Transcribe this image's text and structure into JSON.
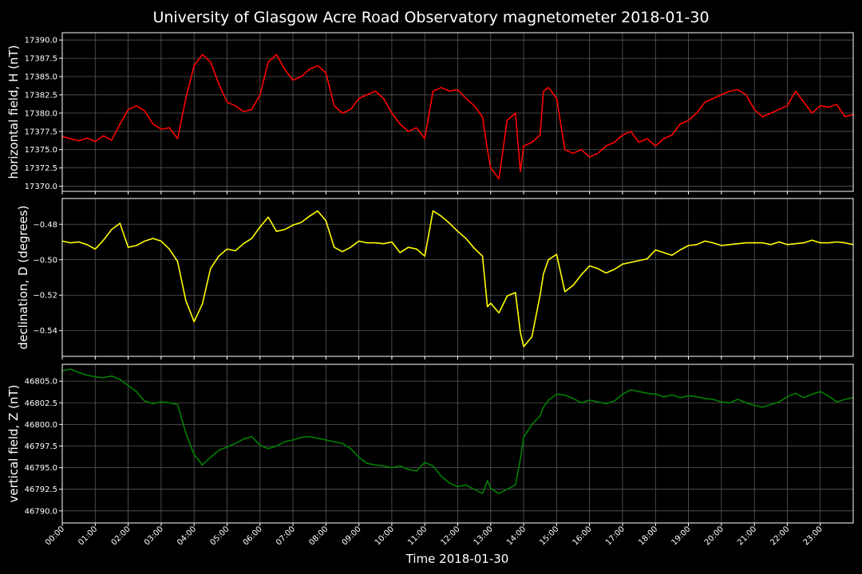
{
  "figure": {
    "title": "University of Glasgow Acre Road Observatory magnetometer 2018-01-30",
    "xlabel": "Time 2018-01-30",
    "background": "#000000"
  },
  "chart_data": [
    {
      "type": "line",
      "ylabel": "horizontal field, H (nT)",
      "color": "#ff0000",
      "xlim": [
        0,
        24
      ],
      "ylim": [
        17369.3,
        17391.0
      ],
      "yticks": [
        17370.0,
        17372.5,
        17375.0,
        17377.5,
        17380.0,
        17382.5,
        17385.0,
        17387.5,
        17390.0
      ],
      "ytick_labels": [
        "17370.0",
        "17372.5",
        "17375.0",
        "17377.5",
        "17380.0",
        "17382.5",
        "17385.0",
        "17387.5",
        "17390.0"
      ],
      "grid": true,
      "x": [
        0,
        0.25,
        0.5,
        0.75,
        1.0,
        1.25,
        1.5,
        1.75,
        2.0,
        2.25,
        2.5,
        2.75,
        3.0,
        3.25,
        3.5,
        3.75,
        4.0,
        4.25,
        4.5,
        4.75,
        5.0,
        5.25,
        5.5,
        5.75,
        6.0,
        6.25,
        6.5,
        6.75,
        7.0,
        7.25,
        7.5,
        7.75,
        8.0,
        8.25,
        8.5,
        8.75,
        9.0,
        9.25,
        9.5,
        9.75,
        10.0,
        10.25,
        10.5,
        10.75,
        11.0,
        11.25,
        11.5,
        11.75,
        12.0,
        12.25,
        12.5,
        12.75,
        12.9,
        13.0,
        13.25,
        13.5,
        13.75,
        13.9,
        14.0,
        14.25,
        14.5,
        14.6,
        14.75,
        15.0,
        15.25,
        15.5,
        15.75,
        16.0,
        16.25,
        16.5,
        16.75,
        17.0,
        17.25,
        17.5,
        17.75,
        18.0,
        18.25,
        18.5,
        18.75,
        19.0,
        19.25,
        19.5,
        19.75,
        20.0,
        20.25,
        20.5,
        20.75,
        21.0,
        21.25,
        21.5,
        21.75,
        22.0,
        22.25,
        22.5,
        22.75,
        23.0,
        23.25,
        23.5,
        23.75,
        24.0
      ],
      "values": [
        17376.8,
        17376.5,
        17376.2,
        17376.6,
        17376.1,
        17376.9,
        17376.3,
        17378.5,
        17380.5,
        17381.0,
        17380.3,
        17378.5,
        17377.8,
        17378.0,
        17376.5,
        17382.0,
        17386.5,
        17388.0,
        17387.0,
        17384.0,
        17381.5,
        17381.0,
        17380.2,
        17380.5,
        17382.5,
        17387.0,
        17388.0,
        17386.0,
        17384.5,
        17385.0,
        17386.0,
        17386.5,
        17385.5,
        17381.0,
        17380.0,
        17380.5,
        17382.0,
        17382.5,
        17383.0,
        17382.0,
        17380.0,
        17378.5,
        17377.5,
        17378.0,
        17376.5,
        17383.0,
        17383.5,
        17383.0,
        17383.2,
        17382.0,
        17381.0,
        17379.5,
        17375.0,
        17372.5,
        17371.0,
        17379.0,
        17380.0,
        17372.0,
        17375.5,
        17376.0,
        17377.0,
        17383.0,
        17383.5,
        17382.0,
        17375.0,
        17374.5,
        17375.0,
        17374.0,
        17374.5,
        17375.5,
        17376.0,
        17377.0,
        17377.5,
        17376.0,
        17376.5,
        17375.5,
        17376.5,
        17377.0,
        17378.5,
        17379.0,
        17380.0,
        17381.5,
        17382.0,
        17382.5,
        17383.0,
        17383.2,
        17382.5,
        17380.5,
        17379.5,
        17380.0,
        17380.5,
        17381.0,
        17383.0,
        17381.5,
        17380.0,
        17381.0,
        17380.8,
        17381.2,
        17379.5,
        17379.8
      ]
    },
    {
      "type": "line",
      "ylabel": "declination, D (degrees)",
      "color": "#ffff00",
      "xlim": [
        0,
        24
      ],
      "ylim": [
        -0.5545,
        -0.4655
      ],
      "yticks": [
        -0.54,
        -0.52,
        -0.5,
        -0.48
      ],
      "ytick_labels": [
        "−0.54",
        "−0.52",
        "−0.50",
        "−0.48"
      ],
      "grid": true,
      "x": [
        0,
        0.25,
        0.5,
        0.75,
        1.0,
        1.25,
        1.5,
        1.75,
        2.0,
        2.25,
        2.5,
        2.75,
        3.0,
        3.25,
        3.5,
        3.75,
        4.0,
        4.25,
        4.5,
        4.75,
        5.0,
        5.25,
        5.5,
        5.75,
        6.0,
        6.25,
        6.5,
        6.75,
        7.0,
        7.25,
        7.5,
        7.75,
        8.0,
        8.25,
        8.5,
        8.75,
        9.0,
        9.25,
        9.5,
        9.75,
        10.0,
        10.25,
        10.5,
        10.75,
        11.0,
        11.25,
        11.5,
        11.75,
        12.0,
        12.25,
        12.5,
        12.75,
        12.9,
        13.0,
        13.25,
        13.5,
        13.75,
        13.9,
        14.0,
        14.25,
        14.5,
        14.6,
        14.75,
        15.0,
        15.25,
        15.5,
        15.75,
        16.0,
        16.25,
        16.5,
        16.75,
        17.0,
        17.25,
        17.5,
        17.75,
        18.0,
        18.25,
        18.5,
        18.75,
        19.0,
        19.25,
        19.5,
        19.75,
        20.0,
        20.25,
        20.5,
        20.75,
        21.0,
        21.25,
        21.5,
        21.75,
        22.0,
        22.25,
        22.5,
        22.75,
        23.0,
        23.25,
        23.5,
        23.75,
        24.0
      ],
      "values": [
        -0.4895,
        -0.4905,
        -0.49,
        -0.4915,
        -0.494,
        -0.489,
        -0.483,
        -0.4795,
        -0.493,
        -0.492,
        -0.4895,
        -0.488,
        -0.4895,
        -0.494,
        -0.501,
        -0.523,
        -0.535,
        -0.525,
        -0.505,
        -0.498,
        -0.494,
        -0.495,
        -0.491,
        -0.488,
        -0.4815,
        -0.476,
        -0.484,
        -0.483,
        -0.4805,
        -0.479,
        -0.4755,
        -0.4725,
        -0.478,
        -0.493,
        -0.4955,
        -0.493,
        -0.4895,
        -0.4905,
        -0.4905,
        -0.491,
        -0.49,
        -0.496,
        -0.493,
        -0.494,
        -0.498,
        -0.4725,
        -0.4755,
        -0.4795,
        -0.484,
        -0.488,
        -0.4935,
        -0.498,
        -0.5265,
        -0.5245,
        -0.53,
        -0.5205,
        -0.5185,
        -0.541,
        -0.549,
        -0.5435,
        -0.52,
        -0.508,
        -0.5,
        -0.497,
        -0.518,
        -0.5145,
        -0.5085,
        -0.5035,
        -0.505,
        -0.5075,
        -0.5055,
        -0.5025,
        -0.5015,
        -0.5005,
        -0.4995,
        -0.4945,
        -0.496,
        -0.4975,
        -0.4945,
        -0.492,
        -0.4915,
        -0.4895,
        -0.4905,
        -0.492,
        -0.4915,
        -0.491,
        -0.4905,
        -0.4905,
        -0.4905,
        -0.4915,
        -0.49,
        -0.4915,
        -0.491,
        -0.4905,
        -0.489,
        -0.4905,
        -0.4905,
        -0.49,
        -0.4905,
        -0.4915
      ]
    },
    {
      "type": "line",
      "ylabel": "vertical field, Z (nT)",
      "color": "#008000",
      "xlim": [
        0,
        24
      ],
      "ylim": [
        46788.6,
        46806.95
      ],
      "yticks": [
        46790.0,
        46792.5,
        46795.0,
        46797.5,
        46800.0,
        46802.5,
        46805.0
      ],
      "ytick_labels": [
        "46790.0",
        "46792.5",
        "46795.0",
        "46797.5",
        "46800.0",
        "46802.5",
        "46805.0"
      ],
      "grid": true,
      "x": [
        0,
        0.25,
        0.5,
        0.75,
        1.0,
        1.25,
        1.5,
        1.75,
        2.0,
        2.25,
        2.5,
        2.75,
        3.0,
        3.25,
        3.5,
        3.75,
        4.0,
        4.25,
        4.5,
        4.75,
        5.0,
        5.25,
        5.5,
        5.75,
        6.0,
        6.25,
        6.5,
        6.75,
        7.0,
        7.25,
        7.5,
        7.75,
        8.0,
        8.25,
        8.5,
        8.75,
        9.0,
        9.25,
        9.5,
        9.75,
        10.0,
        10.25,
        10.5,
        10.75,
        11.0,
        11.25,
        11.5,
        11.75,
        12.0,
        12.25,
        12.5,
        12.75,
        12.9,
        13.0,
        13.25,
        13.5,
        13.75,
        13.9,
        14.0,
        14.25,
        14.5,
        14.6,
        14.75,
        15.0,
        15.25,
        15.5,
        15.75,
        16.0,
        16.25,
        16.5,
        16.75,
        17.0,
        17.25,
        17.5,
        17.75,
        18.0,
        18.25,
        18.5,
        18.75,
        19.0,
        19.25,
        19.5,
        19.75,
        20.0,
        20.25,
        20.5,
        20.75,
        21.0,
        21.25,
        21.5,
        21.75,
        22.0,
        22.25,
        22.5,
        22.75,
        23.0,
        23.25,
        23.5,
        23.75,
        24.0
      ],
      "values": [
        46806.2,
        46806.4,
        46806.0,
        46805.7,
        46805.5,
        46805.4,
        46805.6,
        46805.2,
        46804.5,
        46803.8,
        46802.7,
        46802.4,
        46802.6,
        46802.5,
        46802.3,
        46799.0,
        46796.5,
        46795.3,
        46796.2,
        46797.0,
        46797.4,
        46797.8,
        46798.3,
        46798.6,
        46797.6,
        46797.2,
        46797.5,
        46798.0,
        46798.2,
        46798.5,
        46798.6,
        46798.4,
        46798.2,
        46798.0,
        46797.8,
        46797.2,
        46796.2,
        46795.5,
        46795.3,
        46795.2,
        46795.0,
        46795.2,
        46794.8,
        46794.6,
        46795.6,
        46795.2,
        46794.0,
        46793.2,
        46792.8,
        46793.0,
        46792.5,
        46792.0,
        46793.5,
        46792.6,
        46792.0,
        46792.5,
        46793.0,
        46796.0,
        46798.5,
        46800.0,
        46801.0,
        46802.0,
        46802.8,
        46803.5,
        46803.4,
        46803.0,
        46802.5,
        46802.8,
        46802.6,
        46802.4,
        46802.7,
        46803.5,
        46804.0,
        46803.8,
        46803.6,
        46803.5,
        46803.2,
        46803.4,
        46803.1,
        46803.3,
        46803.2,
        46803.0,
        46802.9,
        46802.6,
        46802.5,
        46802.9,
        46802.5,
        46802.2,
        46802.0,
        46802.3,
        46802.6,
        46803.2,
        46803.6,
        46803.1,
        46803.5,
        46803.8,
        46803.3,
        46802.6,
        46802.9,
        46803.1
      ]
    }
  ],
  "xticks": [
    0,
    1,
    2,
    3,
    4,
    5,
    6,
    7,
    8,
    9,
    10,
    11,
    12,
    13,
    14,
    15,
    16,
    17,
    18,
    19,
    20,
    21,
    22,
    23
  ],
  "xtick_labels": [
    "00:00",
    "01:00",
    "02:00",
    "03:00",
    "04:00",
    "05:00",
    "06:00",
    "07:00",
    "08:00",
    "09:00",
    "10:00",
    "11:00",
    "12:00",
    "13:00",
    "14:00",
    "15:00",
    "16:00",
    "17:00",
    "18:00",
    "19:00",
    "20:00",
    "21:00",
    "22:00",
    "23:00"
  ]
}
